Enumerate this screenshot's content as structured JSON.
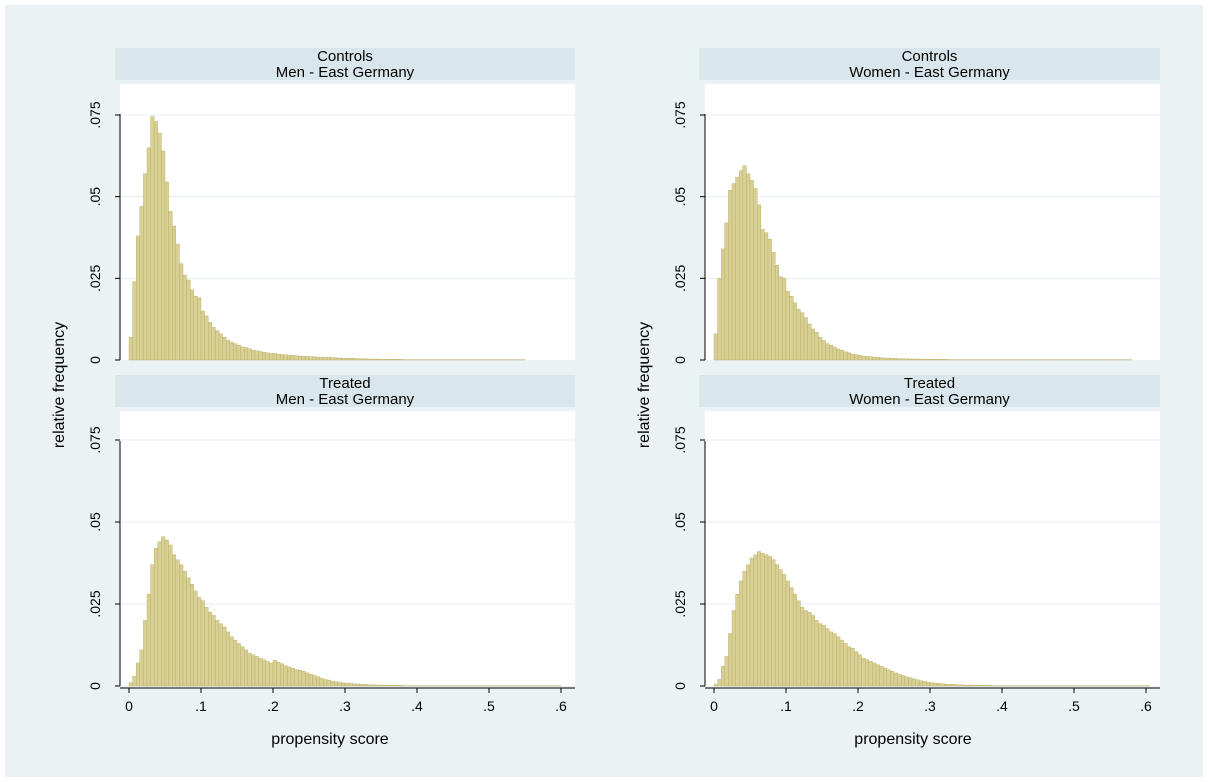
{
  "colors": {
    "outer_background": "#eaf2f3",
    "panel_header": "#d9e6eb",
    "plot_background": "#ffffff",
    "grid": "#e6eef1",
    "bar_fill": "#d8cf94",
    "bar_edge": "#b8ac62"
  },
  "ylabel": "relative frequency",
  "xlabel": "propensity score",
  "chart_data": [
    {
      "type": "bar",
      "title": "Controls",
      "subtitle": "Men - East Germany",
      "xlim": [
        0,
        0.6
      ],
      "ylim": [
        0,
        0.075
      ],
      "x_ticks": [
        "0",
        ".1",
        ".2",
        ".3",
        ".4",
        ".5",
        ".6"
      ],
      "y_ticks": [
        "0",
        ".025",
        ".05",
        ".075"
      ],
      "grid": true,
      "bin_width": 0.005,
      "bin_start": 0.0,
      "values": [
        0.007,
        0.024,
        0.038,
        0.047,
        0.057,
        0.065,
        0.0745,
        0.073,
        0.0695,
        0.064,
        0.0545,
        0.0455,
        0.041,
        0.0355,
        0.0295,
        0.026,
        0.0245,
        0.0215,
        0.0195,
        0.019,
        0.015,
        0.0135,
        0.0115,
        0.01,
        0.009,
        0.008,
        0.007,
        0.006,
        0.0055,
        0.005,
        0.0045,
        0.004,
        0.0038,
        0.0035,
        0.003,
        0.0028,
        0.0026,
        0.0024,
        0.0022,
        0.002,
        0.002,
        0.0018,
        0.0017,
        0.0016,
        0.0015,
        0.0014,
        0.0013,
        0.0012,
        0.0012,
        0.0011,
        0.001,
        0.001,
        0.0009,
        0.0009,
        0.0008,
        0.0008,
        0.0007,
        0.0007,
        0.0006,
        0.0006,
        0.0005,
        0.0005,
        0.0005,
        0.0004,
        0.0004,
        0.0004,
        0.0003,
        0.0003,
        0.0003,
        0.0003,
        0.0002,
        0.0002,
        0.0002,
        0.0002,
        0.0002,
        0.0002,
        0.0001,
        0.0001,
        0.0001,
        0.0001,
        0.0001,
        0.0001,
        0.0001,
        0.0001,
        0.0001,
        0.0001,
        0.0001,
        0.0001,
        0.0001,
        0.0001,
        0.0001,
        0.0001,
        0.0001,
        0.0001,
        0.0001,
        0.0001,
        0.0001,
        0.0001,
        0.0001,
        0.0001,
        0.0001,
        0.0001,
        0.0001,
        0.0001,
        0.0001,
        0.0001,
        0.0001,
        0.0001,
        0.0001,
        0.0001
      ]
    },
    {
      "type": "bar",
      "title": "Controls",
      "subtitle": "Women - East Germany",
      "xlim": [
        0,
        0.6
      ],
      "ylim": [
        0,
        0.075
      ],
      "x_ticks": [
        "0",
        ".1",
        ".2",
        ".3",
        ".4",
        ".5",
        ".6"
      ],
      "y_ticks": [
        "0",
        ".025",
        ".05",
        ".075"
      ],
      "grid": true,
      "bin_width": 0.005,
      "bin_start": 0.0,
      "values": [
        0.008,
        0.025,
        0.034,
        0.042,
        0.052,
        0.054,
        0.056,
        0.058,
        0.0595,
        0.057,
        0.055,
        0.0525,
        0.0475,
        0.04,
        0.039,
        0.037,
        0.033,
        0.029,
        0.0255,
        0.025,
        0.021,
        0.0195,
        0.0175,
        0.0155,
        0.0145,
        0.013,
        0.011,
        0.0095,
        0.0085,
        0.007,
        0.006,
        0.005,
        0.0045,
        0.004,
        0.0034,
        0.003,
        0.0025,
        0.0022,
        0.0018,
        0.0016,
        0.0014,
        0.0012,
        0.0011,
        0.001,
        0.0009,
        0.0008,
        0.0007,
        0.0006,
        0.0006,
        0.0005,
        0.0005,
        0.0004,
        0.0004,
        0.0004,
        0.0003,
        0.0003,
        0.0003,
        0.0003,
        0.0002,
        0.0002,
        0.0002,
        0.0002,
        0.0002,
        0.0002,
        0.0002,
        0.0001,
        0.0001,
        0.0001,
        0.0001,
        0.0001,
        0.0001,
        0.0001,
        0.0001,
        0.0001,
        0.0001,
        0.0001,
        0.0001,
        0.0001,
        0.0001,
        0.0001,
        0.0001,
        0.0001,
        0.0001,
        0.0001,
        0.0001,
        0.0001,
        0.0001,
        0.0001,
        0.0001,
        0.0001,
        0.0001,
        0.0001,
        0.0001,
        0.0001,
        0.0001,
        0.0001,
        0.0001,
        0.0001,
        0.0001,
        0.0001,
        0.0001,
        0.0001,
        0.0001,
        0.0001,
        0.0001,
        0.0001,
        0.0001,
        0.0001,
        0.0001,
        0.0001,
        0.0001,
        0.0001,
        0.0001,
        0.0001,
        0.0001,
        0.0001
      ]
    },
    {
      "type": "bar",
      "title": "Treated",
      "subtitle": "Men - East Germany",
      "xlim": [
        0,
        0.6
      ],
      "ylim": [
        0,
        0.075
      ],
      "x_ticks": [
        "0",
        ".1",
        ".2",
        ".3",
        ".4",
        ".5",
        ".6"
      ],
      "y_ticks": [
        "0",
        ".025",
        ".05",
        ".075"
      ],
      "grid": true,
      "bin_width": 0.005,
      "bin_start": 0.0,
      "values": [
        0.001,
        0.003,
        0.007,
        0.011,
        0.02,
        0.028,
        0.037,
        0.042,
        0.044,
        0.0455,
        0.0445,
        0.043,
        0.04,
        0.0385,
        0.037,
        0.035,
        0.033,
        0.031,
        0.029,
        0.027,
        0.026,
        0.024,
        0.0225,
        0.0215,
        0.02,
        0.019,
        0.018,
        0.0165,
        0.015,
        0.014,
        0.013,
        0.012,
        0.011,
        0.01,
        0.0095,
        0.009,
        0.0085,
        0.008,
        0.0075,
        0.007,
        0.0078,
        0.0072,
        0.0068,
        0.0062,
        0.0058,
        0.0054,
        0.005,
        0.0048,
        0.0045,
        0.004,
        0.0036,
        0.0032,
        0.0028,
        0.0024,
        0.002,
        0.0018,
        0.0015,
        0.0013,
        0.0011,
        0.001,
        0.0009,
        0.0008,
        0.0007,
        0.0006,
        0.0005,
        0.0005,
        0.0004,
        0.0004,
        0.0003,
        0.0003,
        0.0003,
        0.0002,
        0.0002,
        0.0002,
        0.0002,
        0.0002,
        0.0001,
        0.0001,
        0.0001,
        0.0001,
        0.0001,
        0.0001,
        0.0001,
        0.0001,
        0.0001,
        0.0001,
        0.0001,
        0.0001,
        0.0001,
        0.0001,
        0.0001,
        0.0001,
        0.0001,
        0.0001,
        0.0001,
        0.0001,
        0.0001,
        0.0001,
        0.0001,
        0.0001,
        0.0001,
        0.0001,
        0.0001,
        0.0001,
        0.0001,
        0.0001,
        0.0001,
        0.0001,
        0.0001,
        0.0001,
        0.0001,
        0.0001,
        0.0001,
        0.0001,
        0.0001,
        0.0001,
        0.0001,
        0.0001,
        0.0001,
        0.0001
      ]
    },
    {
      "type": "bar",
      "title": "Treated",
      "subtitle": "Women - East Germany",
      "xlim": [
        0,
        0.6
      ],
      "ylim": [
        0,
        0.075
      ],
      "x_ticks": [
        "0",
        ".1",
        ".2",
        ".3",
        ".4",
        ".5",
        ".6"
      ],
      "y_ticks": [
        "0",
        ".025",
        ".05",
        ".075"
      ],
      "grid": true,
      "bin_width": 0.005,
      "bin_start": 0.0,
      "values": [
        0.0005,
        0.002,
        0.006,
        0.009,
        0.016,
        0.023,
        0.028,
        0.032,
        0.035,
        0.037,
        0.039,
        0.04,
        0.041,
        0.0405,
        0.04,
        0.0395,
        0.0385,
        0.037,
        0.0355,
        0.034,
        0.032,
        0.03,
        0.028,
        0.026,
        0.024,
        0.023,
        0.0225,
        0.0215,
        0.02,
        0.019,
        0.0185,
        0.0175,
        0.0165,
        0.016,
        0.015,
        0.014,
        0.013,
        0.012,
        0.0115,
        0.0105,
        0.0095,
        0.0085,
        0.008,
        0.0075,
        0.007,
        0.0065,
        0.006,
        0.0055,
        0.005,
        0.0045,
        0.004,
        0.0036,
        0.0032,
        0.0028,
        0.0025,
        0.0022,
        0.0019,
        0.0016,
        0.0014,
        0.0012,
        0.001,
        0.0009,
        0.0008,
        0.0007,
        0.0006,
        0.0005,
        0.0005,
        0.0004,
        0.0004,
        0.0003,
        0.0003,
        0.0003,
        0.0002,
        0.0002,
        0.0002,
        0.0002,
        0.0002,
        0.0001,
        0.0001,
        0.0001,
        0.0001,
        0.0001,
        0.0001,
        0.0001,
        0.0001,
        0.0001,
        0.0001,
        0.0001,
        0.0001,
        0.0001,
        0.0001,
        0.0001,
        0.0001,
        0.0001,
        0.0001,
        0.0001,
        0.0001,
        0.0001,
        0.0001,
        0.0001,
        0.0001,
        0.0001,
        0.0001,
        0.0001,
        0.0001,
        0.0001,
        0.0001,
        0.0001,
        0.0001,
        0.0001,
        0.0001,
        0.0001,
        0.0001,
        0.0001,
        0.0001,
        0.0001,
        0.0001,
        0.0001,
        0.0001,
        0.0001,
        0.0001
      ]
    }
  ]
}
